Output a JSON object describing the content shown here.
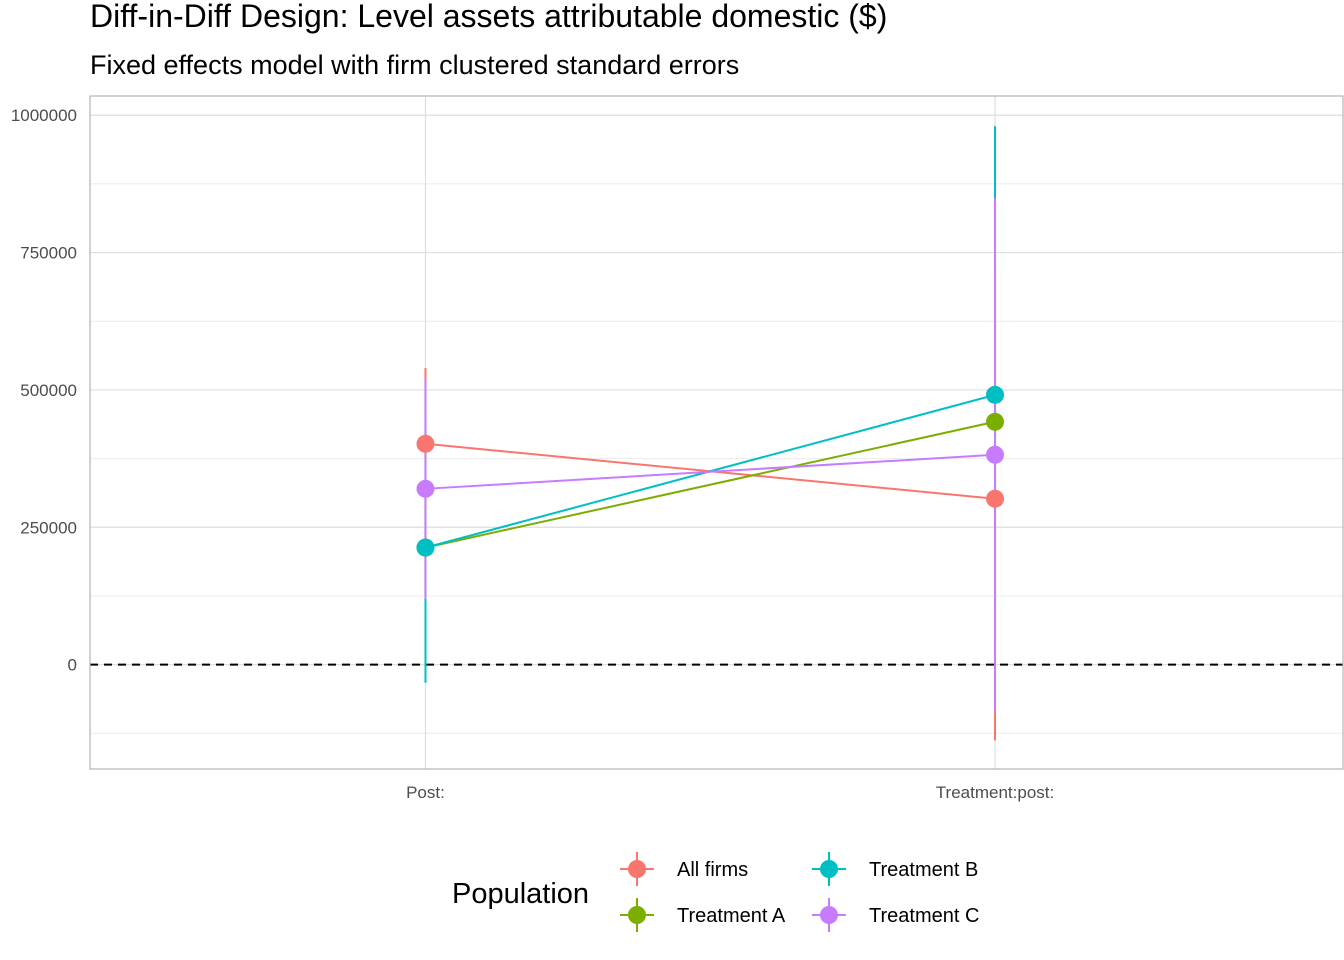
{
  "chart_data": {
    "type": "line",
    "title": "Diff-in-Diff Design: Level assets attributable domestic  ($)",
    "subtitle": "Fixed effects model with firm clustered standard errors",
    "xlabel": "",
    "ylabel": "",
    "categories": [
      "Post:",
      "Treatment:post:"
    ],
    "ylim": [
      -190000,
      1035000
    ],
    "y_ticks": [
      0,
      250000,
      500000,
      750000,
      1000000
    ],
    "y_tick_labels": [
      "0",
      "250000",
      "500000",
      "750000",
      "1000000"
    ],
    "grid": true,
    "reference_line": {
      "y": 0,
      "style": "dashed",
      "color": "#000000"
    },
    "legend": {
      "title": "Population",
      "position": "bottom"
    },
    "series": [
      {
        "name": "All firms",
        "color": "#F8766D",
        "values": [
          402000,
          302000
        ],
        "lower": [
          128000,
          -138000
        ],
        "upper": [
          540000,
          742000
        ]
      },
      {
        "name": "Treatment A",
        "color": "#7CAE00",
        "values": [
          213000,
          442000
        ],
        "lower": [
          120000,
          42000
        ],
        "upper": [
          306000,
          852000
        ]
      },
      {
        "name": "Treatment B",
        "color": "#00BFC4",
        "values": [
          213000,
          491000
        ],
        "lower": [
          -33000,
          2000
        ],
        "upper": [
          459000,
          980000
        ]
      },
      {
        "name": "Treatment C",
        "color": "#C77CFF",
        "values": [
          320000,
          382000
        ],
        "lower": [
          120000,
          -85000
        ],
        "upper": [
          520000,
          849000
        ]
      }
    ]
  }
}
